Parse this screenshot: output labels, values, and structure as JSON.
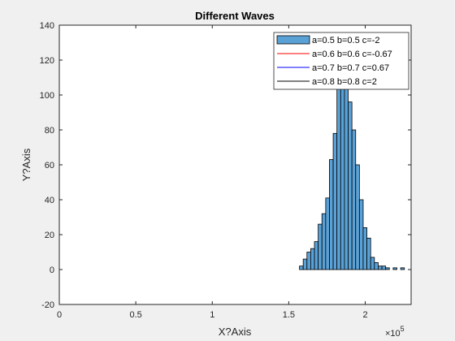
{
  "chart_data": {
    "type": "histogram",
    "title": "Different Waves",
    "xlabel": "X?Axis",
    "ylabel": "Y?Axis",
    "x_exponent_label": "×10",
    "x_exponent_power": "5",
    "xlim": [
      0,
      230000
    ],
    "ylim": [
      -20,
      140
    ],
    "x_ticks": [
      0,
      50000,
      100000,
      150000,
      200000
    ],
    "x_tick_labels": [
      "0",
      "0.5",
      "1",
      "1.5",
      "2"
    ],
    "y_ticks": [
      -20,
      0,
      20,
      40,
      60,
      80,
      100,
      120,
      140
    ],
    "y_tick_labels": [
      "-20",
      "0",
      "20",
      "40",
      "60",
      "80",
      "100",
      "120",
      "140"
    ],
    "bin_width": 2450,
    "bins": [
      {
        "x0": 157000,
        "y": 2
      },
      {
        "x0": 159450,
        "y": 6
      },
      {
        "x0": 161900,
        "y": 10
      },
      {
        "x0": 164350,
        "y": 12
      },
      {
        "x0": 166800,
        "y": 16
      },
      {
        "x0": 169250,
        "y": 26
      },
      {
        "x0": 171700,
        "y": 32
      },
      {
        "x0": 174150,
        "y": 41
      },
      {
        "x0": 176600,
        "y": 63
      },
      {
        "x0": 179050,
        "y": 78
      },
      {
        "x0": 181500,
        "y": 108
      },
      {
        "x0": 183950,
        "y": 135
      },
      {
        "x0": 186400,
        "y": 132
      },
      {
        "x0": 188850,
        "y": 96
      },
      {
        "x0": 191300,
        "y": 80
      },
      {
        "x0": 193750,
        "y": 60
      },
      {
        "x0": 196200,
        "y": 40
      },
      {
        "x0": 198650,
        "y": 24
      },
      {
        "x0": 201100,
        "y": 18
      },
      {
        "x0": 203550,
        "y": 7
      },
      {
        "x0": 206000,
        "y": 4
      },
      {
        "x0": 208450,
        "y": 2
      },
      {
        "x0": 210900,
        "y": 2
      },
      {
        "x0": 213350,
        "y": 1
      },
      {
        "x0": 215800,
        "y": 0
      },
      {
        "x0": 218250,
        "y": 1
      },
      {
        "x0": 220700,
        "y": 0
      },
      {
        "x0": 223150,
        "y": 1
      }
    ],
    "legend_placement": "top-right",
    "series": [
      {
        "name": "a=0.5 b=0.5 c=-2",
        "color": "#4f9bd3",
        "style": "patch"
      },
      {
        "name": "a=0.6 b=0.6 c=-0.67",
        "color": "#ff0000",
        "style": "line"
      },
      {
        "name": "a=0.7 b=0.7 c=0.67",
        "color": "#0000ff",
        "style": "line"
      },
      {
        "name": "a=0.8 b=0.8 c=2",
        "color": "#000000",
        "style": "line"
      }
    ],
    "colors": {
      "bar_fill": "#5aa1d6",
      "bar_edge": "#000000",
      "axes_bg": "#ffffff",
      "figure_bg": "#f0f0f0"
    }
  }
}
